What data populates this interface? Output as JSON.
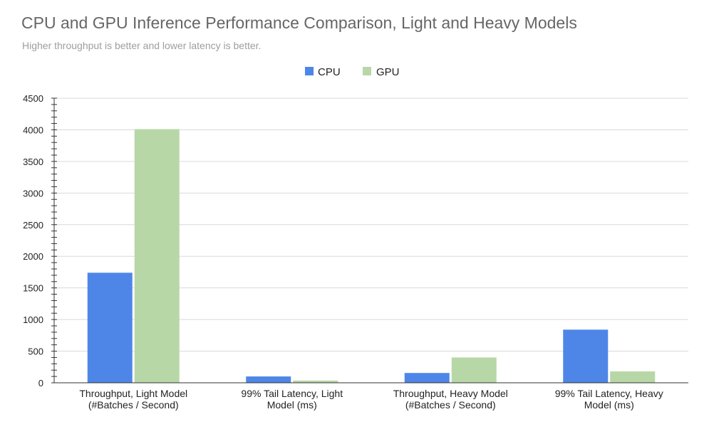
{
  "chart_data": {
    "type": "bar",
    "title": "CPU and GPU Inference Performance Comparison, Light and Heavy Models",
    "subtitle": "Higher throughput is better and lower latency is better.",
    "categories": [
      [
        "Throughput, Light Model",
        "(#Batches / Second)"
      ],
      [
        "99% Tail Latency, Light",
        "Model (ms)"
      ],
      [
        "Throughput, Heavy Model",
        "(#Batches / Second)"
      ],
      [
        "99% Tail Latency, Heavy",
        "Model (ms)"
      ]
    ],
    "series": [
      {
        "name": "CPU",
        "color": "#4e86e8",
        "values": [
          1740,
          100,
          155,
          840
        ]
      },
      {
        "name": "GPU",
        "color": "#b8d7a7",
        "values": [
          4010,
          35,
          400,
          180
        ]
      }
    ],
    "ylim": [
      0,
      4500
    ],
    "yticks": [
      0,
      500,
      1000,
      1500,
      2000,
      2500,
      3000,
      3500,
      4000,
      4500
    ],
    "grid": true,
    "legend_position": "top-center",
    "xlabel": "",
    "ylabel": ""
  }
}
